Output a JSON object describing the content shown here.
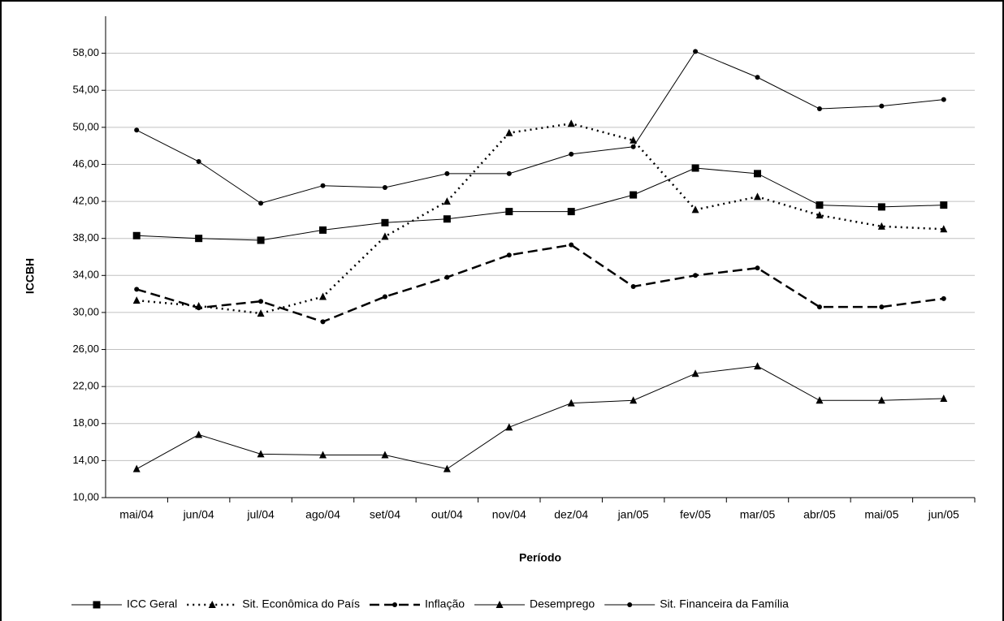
{
  "chart_data": {
    "type": "line",
    "ylabel": "ICCBH",
    "xlabel": "Período",
    "categories": [
      "mai/04",
      "jun/04",
      "jul/04",
      "ago/04",
      "set/04",
      "out/04",
      "nov/04",
      "dez/04",
      "jan/05",
      "fev/05",
      "mar/05",
      "abr/05",
      "mai/05",
      "jun/05"
    ],
    "ylim": [
      10,
      62
    ],
    "yticks": [
      {
        "value": 10,
        "label": "10,00"
      },
      {
        "value": 14,
        "label": "14,00"
      },
      {
        "value": 18,
        "label": "18,00"
      },
      {
        "value": 22,
        "label": "22,00"
      },
      {
        "value": 26,
        "label": "26,00"
      },
      {
        "value": 30,
        "label": "30,00"
      },
      {
        "value": 34,
        "label": "34,00"
      },
      {
        "value": 38,
        "label": "38,00"
      },
      {
        "value": 42,
        "label": "42,00"
      },
      {
        "value": 46,
        "label": "46,00"
      },
      {
        "value": 50,
        "label": "50,00"
      },
      {
        "value": 54,
        "label": "54,00"
      },
      {
        "value": 58,
        "label": "58,00"
      }
    ],
    "grid": true,
    "legend": "bottom",
    "series": [
      {
        "name": "ICC Geral",
        "color": "#000000",
        "dash": "solid",
        "marker": "square",
        "values": [
          38.3,
          38.0,
          37.8,
          38.9,
          39.7,
          40.1,
          40.9,
          40.9,
          42.7,
          45.6,
          45.0,
          41.6,
          41.4,
          41.6
        ]
      },
      {
        "name": "Sit. Econômica do País",
        "color": "#000000",
        "dash": "dotted",
        "marker": "triangle",
        "values": [
          31.3,
          30.7,
          29.9,
          31.7,
          38.2,
          42.0,
          49.4,
          50.4,
          48.6,
          41.1,
          42.5,
          40.5,
          39.3,
          39.0
        ]
      },
      {
        "name": "Inflação",
        "color": "#000000",
        "dash": "dashed",
        "marker": "circle",
        "values": [
          32.5,
          30.5,
          31.2,
          29.0,
          31.7,
          33.8,
          36.2,
          37.3,
          32.8,
          34.0,
          34.8,
          30.6,
          30.6,
          31.5
        ]
      },
      {
        "name": "Desemprego",
        "color": "#000000",
        "dash": "solid",
        "marker": "triangle",
        "values": [
          13.1,
          16.8,
          14.7,
          14.6,
          14.6,
          13.1,
          17.6,
          20.2,
          20.5,
          23.4,
          24.2,
          20.5,
          20.5,
          20.7
        ]
      },
      {
        "name": "Sit. Financeira da Família",
        "color": "#000000",
        "dash": "solid",
        "marker": "circle",
        "values": [
          49.7,
          46.3,
          41.8,
          43.7,
          43.5,
          45.0,
          45.0,
          47.1,
          47.9,
          58.2,
          55.4,
          52.0,
          52.3,
          53.0
        ]
      }
    ]
  }
}
